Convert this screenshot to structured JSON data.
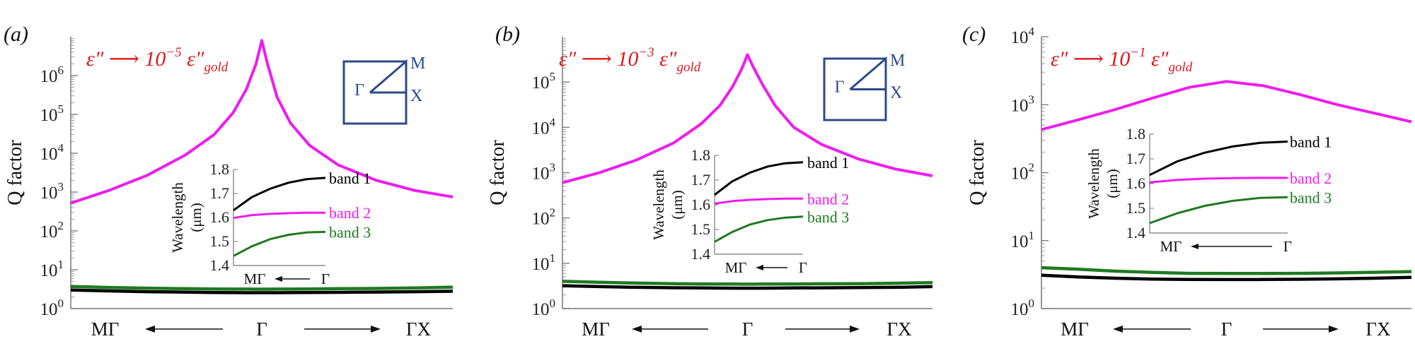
{
  "chart_data": [
    {
      "type": "line",
      "panel_label": "(a)",
      "title": "",
      "annotation": {
        "base": "ε″ ⟶ 10",
        "exponent": "−5",
        "suffix": " ε″",
        "subscript": "gold",
        "color": "#e0161c"
      },
      "ylabel": "Q factor",
      "yscale": "log",
      "ylim": [
        1,
        10000000
      ],
      "yticks": [
        {
          "value": 1,
          "exp": "0"
        },
        {
          "value": 10,
          "exp": "1"
        },
        {
          "value": 100,
          "exp": "2"
        },
        {
          "value": 1000,
          "exp": "3"
        },
        {
          "value": 10000,
          "exp": "4"
        },
        {
          "value": 100000,
          "exp": "5"
        },
        {
          "value": 1000000,
          "exp": "6"
        }
      ],
      "ytick_base": "10",
      "x_categories": {
        "left": "MΓ",
        "center": "Γ",
        "right": "ΓX"
      },
      "x": [
        -1,
        -0.8,
        -0.6,
        -0.4,
        -0.25,
        -0.15,
        -0.08,
        -0.03,
        0,
        0.03,
        0.08,
        0.15,
        0.25,
        0.4,
        0.6,
        0.8,
        1
      ],
      "series": [
        {
          "name": "magenta",
          "color": "#ee1cee",
          "values": [
            520,
            1100,
            2700,
            9000,
            30000,
            110000,
            450000,
            2000000,
            8000000,
            2000000,
            280000,
            60000,
            16000,
            5000,
            2000,
            1100,
            750
          ]
        },
        {
          "name": "green",
          "color": "#1f7a1f",
          "values": [
            3.7,
            3.5,
            3.35,
            3.25,
            3.2,
            3.18,
            3.17,
            3.16,
            3.16,
            3.16,
            3.17,
            3.18,
            3.2,
            3.25,
            3.3,
            3.4,
            3.55
          ]
        },
        {
          "name": "black",
          "color": "#000000",
          "values": [
            3.0,
            2.85,
            2.72,
            2.65,
            2.6,
            2.58,
            2.57,
            2.56,
            2.56,
            2.56,
            2.57,
            2.58,
            2.6,
            2.62,
            2.66,
            2.72,
            2.8
          ]
        }
      ],
      "bz_labels": {
        "gamma": "Γ",
        "m": "M",
        "x": "X"
      },
      "inset": {
        "ylabel_line1": "Wavelength",
        "ylabel_line2": "(μm)",
        "ylim": [
          1.4,
          1.8
        ],
        "yticks": [
          "1.4",
          "1.5",
          "1.6",
          "1.7",
          "1.8"
        ],
        "xlabel_left": "MΓ",
        "xlabel_right": "Γ",
        "x": [
          0,
          0.2,
          0.4,
          0.6,
          0.8,
          1
        ],
        "bands": [
          {
            "name": "band 1",
            "color": "#000000",
            "values": [
              1.63,
              1.685,
              1.72,
              1.745,
              1.76,
              1.765
            ]
          },
          {
            "name": "band 2",
            "color": "#ee1cee",
            "values": [
              1.598,
              1.61,
              1.615,
              1.618,
              1.62,
              1.62
            ]
          },
          {
            "name": "band 3",
            "color": "#1f7a1f",
            "values": [
              1.44,
              1.48,
              1.51,
              1.528,
              1.538,
              1.54
            ]
          }
        ]
      }
    },
    {
      "type": "line",
      "panel_label": "(b)",
      "title": "",
      "annotation": {
        "base": "ε″ ⟶ 10",
        "exponent": "−3",
        "suffix": " ε″",
        "subscript": "gold",
        "color": "#e0161c"
      },
      "ylabel": "Q factor",
      "yscale": "log",
      "ylim": [
        1,
        1000000
      ],
      "yticks": [
        {
          "value": 1,
          "exp": "0"
        },
        {
          "value": 10,
          "exp": "1"
        },
        {
          "value": 100,
          "exp": "2"
        },
        {
          "value": 1000,
          "exp": "3"
        },
        {
          "value": 10000,
          "exp": "4"
        },
        {
          "value": 100000,
          "exp": "5"
        }
      ],
      "ytick_base": "10",
      "x_categories": {
        "left": "MΓ",
        "center": "Γ",
        "right": "ΓX"
      },
      "x": [
        -1,
        -0.8,
        -0.6,
        -0.4,
        -0.25,
        -0.15,
        -0.08,
        -0.03,
        0,
        0.03,
        0.08,
        0.15,
        0.25,
        0.4,
        0.6,
        0.8,
        1
      ],
      "series": [
        {
          "name": "magenta",
          "color": "#ee1cee",
          "values": [
            600,
            1000,
            1900,
            4500,
            12000,
            30000,
            80000,
            200000,
            400000,
            220000,
            90000,
            30000,
            10000,
            4200,
            2000,
            1200,
            850
          ]
        },
        {
          "name": "green",
          "color": "#1f7a1f",
          "values": [
            4.0,
            3.8,
            3.65,
            3.55,
            3.5,
            3.48,
            3.47,
            3.46,
            3.46,
            3.46,
            3.47,
            3.48,
            3.5,
            3.52,
            3.55,
            3.62,
            3.75
          ]
        },
        {
          "name": "black",
          "color": "#000000",
          "values": [
            3.2,
            3.05,
            2.95,
            2.88,
            2.85,
            2.83,
            2.82,
            2.82,
            2.82,
            2.82,
            2.82,
            2.83,
            2.85,
            2.87,
            2.9,
            2.95,
            3.05
          ]
        }
      ],
      "bz_labels": {
        "gamma": "Γ",
        "m": "M",
        "x": "X"
      },
      "inset": {
        "ylabel_line1": "Wavelength",
        "ylabel_line2": "(μm)",
        "ylim": [
          1.4,
          1.8
        ],
        "yticks": [
          "1.4",
          "1.5",
          "1.6",
          "1.7",
          "1.8"
        ],
        "xlabel_left": "MΓ",
        "xlabel_right": "Γ",
        "x": [
          0,
          0.2,
          0.4,
          0.6,
          0.8,
          1
        ],
        "bands": [
          {
            "name": "band 1",
            "color": "#000000",
            "values": [
              1.64,
              1.695,
              1.73,
              1.755,
              1.768,
              1.772
            ]
          },
          {
            "name": "band 2",
            "color": "#ee1cee",
            "values": [
              1.605,
              1.615,
              1.62,
              1.623,
              1.625,
              1.625
            ]
          },
          {
            "name": "band 3",
            "color": "#1f7a1f",
            "values": [
              1.45,
              1.49,
              1.52,
              1.538,
              1.548,
              1.552
            ]
          }
        ]
      }
    },
    {
      "type": "line",
      "panel_label": "(c)",
      "title": "",
      "annotation": {
        "base": "ε″ ⟶ 10",
        "exponent": "−1",
        "suffix": " ε″",
        "subscript": "gold",
        "color": "#e0161c"
      },
      "ylabel": "Q factor",
      "yscale": "log",
      "ylim": [
        1,
        10000
      ],
      "yticks": [
        {
          "value": 1,
          "exp": "0"
        },
        {
          "value": 10,
          "exp": "1"
        },
        {
          "value": 100,
          "exp": "2"
        },
        {
          "value": 1000,
          "exp": "3"
        },
        {
          "value": 10000,
          "exp": "4"
        }
      ],
      "ytick_base": "10",
      "x_categories": {
        "left": "MΓ",
        "center": "Γ",
        "right": "ΓX"
      },
      "x": [
        -1,
        -0.8,
        -0.6,
        -0.4,
        -0.2,
        0,
        0.2,
        0.4,
        0.6,
        0.8,
        1
      ],
      "series": [
        {
          "name": "magenta",
          "color": "#ee1cee",
          "values": [
            430,
            600,
            850,
            1250,
            1800,
            2200,
            1900,
            1400,
            1000,
            750,
            560
          ]
        },
        {
          "name": "green",
          "color": "#1f7a1f",
          "values": [
            4.0,
            3.8,
            3.55,
            3.4,
            3.3,
            3.28,
            3.28,
            3.3,
            3.35,
            3.42,
            3.5
          ]
        },
        {
          "name": "black",
          "color": "#000000",
          "values": [
            3.1,
            2.92,
            2.8,
            2.72,
            2.68,
            2.67,
            2.68,
            2.7,
            2.74,
            2.8,
            2.88
          ]
        }
      ],
      "inset": {
        "ylabel_line1": "Wavelength",
        "ylabel_line2": "(μm)",
        "ylim": [
          1.4,
          1.8
        ],
        "yticks": [
          "1.4",
          "1.5",
          "1.6",
          "1.7",
          "1.8"
        ],
        "xlabel_left": "MΓ",
        "xlabel_right": "Γ",
        "x": [
          0,
          0.2,
          0.4,
          0.6,
          0.8,
          1
        ],
        "bands": [
          {
            "name": "band 1",
            "color": "#000000",
            "values": [
              1.635,
              1.69,
              1.725,
              1.75,
              1.765,
              1.77
            ]
          },
          {
            "name": "band 2",
            "color": "#ee1cee",
            "values": [
              1.605,
              1.615,
              1.62,
              1.622,
              1.623,
              1.623
            ]
          },
          {
            "name": "band 3",
            "color": "#1f7a1f",
            "values": [
              1.44,
              1.48,
              1.51,
              1.53,
              1.542,
              1.545
            ]
          }
        ]
      }
    }
  ]
}
